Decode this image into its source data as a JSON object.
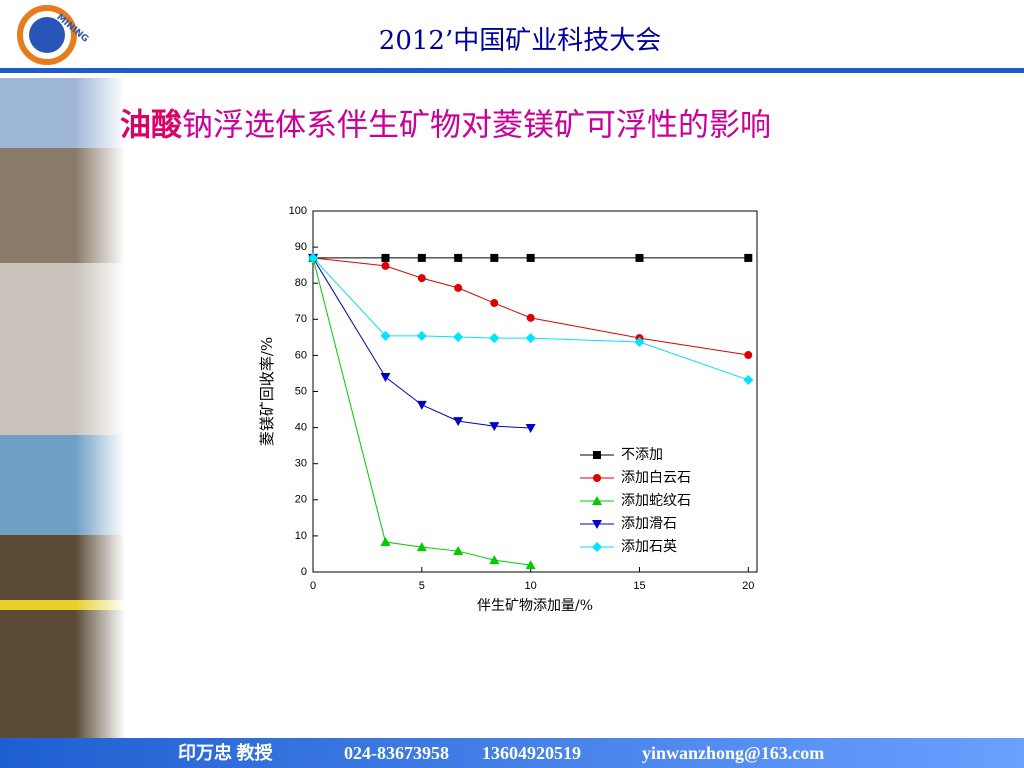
{
  "header": {
    "logo_text": "MINING",
    "title": "2012’中国矿业科技大会"
  },
  "slide_title": {
    "highlight": "油酸",
    "rest": "钠浮选体系伴生矿物对菱镁矿可浮性的影响"
  },
  "chart_data": {
    "type": "line",
    "x_label": "伴生矿物添加量/%",
    "y_label": "菱镁矿回收率/%",
    "x": [
      0,
      3.33,
      5,
      6.67,
      8.33,
      10,
      15,
      20
    ],
    "xlim": [
      0,
      20.4
    ],
    "xticks": [
      0,
      5,
      10,
      15,
      20
    ],
    "ylim": [
      0,
      100
    ],
    "yticks": [
      0,
      10,
      20,
      30,
      40,
      50,
      60,
      70,
      80,
      90,
      100
    ],
    "series": [
      {
        "name": "不添加",
        "color": "#000000",
        "marker": "square",
        "values": [
          87,
          87,
          87,
          87,
          87,
          87,
          87,
          87
        ]
      },
      {
        "name": "添加白云石",
        "color": "#e00000",
        "marker": "circle",
        "values": [
          87,
          84.8,
          81.4,
          78.7,
          74.5,
          70.4,
          64.8,
          60.1
        ]
      },
      {
        "name": "添加蛇纹石",
        "color": "#00cc00",
        "marker": "triangle-up",
        "values": [
          87,
          8.3,
          6.9,
          5.8,
          3.3,
          1.9,
          null,
          null
        ]
      },
      {
        "name": "添加滑石",
        "color": "#0000cc",
        "marker": "triangle-down",
        "values": [
          87,
          54,
          46.3,
          41.8,
          40.4,
          39.9,
          null,
          null
        ]
      },
      {
        "name": "添加石英",
        "color": "#00e5ff",
        "marker": "diamond",
        "values": [
          87,
          65.4,
          65.4,
          65.1,
          64.8,
          64.8,
          63.7,
          53.2
        ]
      }
    ]
  },
  "footer": {
    "name": "印万忠 教授",
    "phone": "024-83673958",
    "mobile": "13604920519",
    "email": "yinwanzhong@163.com"
  }
}
